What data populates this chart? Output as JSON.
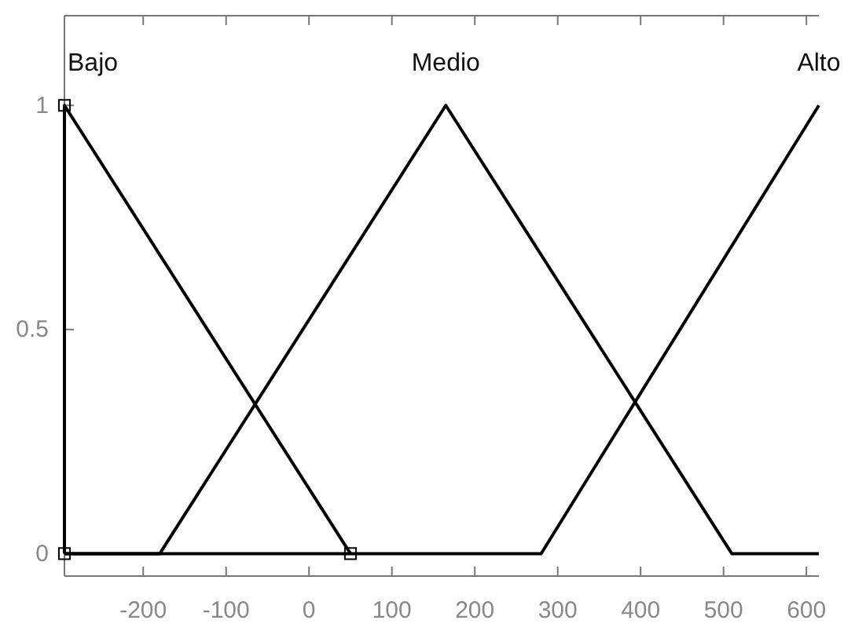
{
  "chart_data": {
    "type": "line",
    "xlim": [
      -295,
      615
    ],
    "xticks": [
      -200,
      -100,
      0,
      100,
      200,
      300,
      400,
      500,
      600
    ],
    "ylim": [
      -0.05,
      1.2
    ],
    "yticks": [
      0,
      0.5,
      1
    ],
    "grid": false,
    "line_style": "solid",
    "series": [
      {
        "name": "Bajo",
        "color": "#000000",
        "x": [
          -295,
          -295,
          50
        ],
        "values": [
          0,
          1,
          0
        ],
        "marker": "square"
      },
      {
        "name": "Medio",
        "color": "#000000",
        "x": [
          -295,
          -180,
          165,
          510,
          615
        ],
        "values": [
          0,
          0,
          1,
          0,
          0
        ]
      },
      {
        "name": "Alto",
        "color": "#000000",
        "x": [
          -295,
          280,
          615
        ],
        "values": [
          0,
          0,
          1
        ]
      }
    ]
  }
}
